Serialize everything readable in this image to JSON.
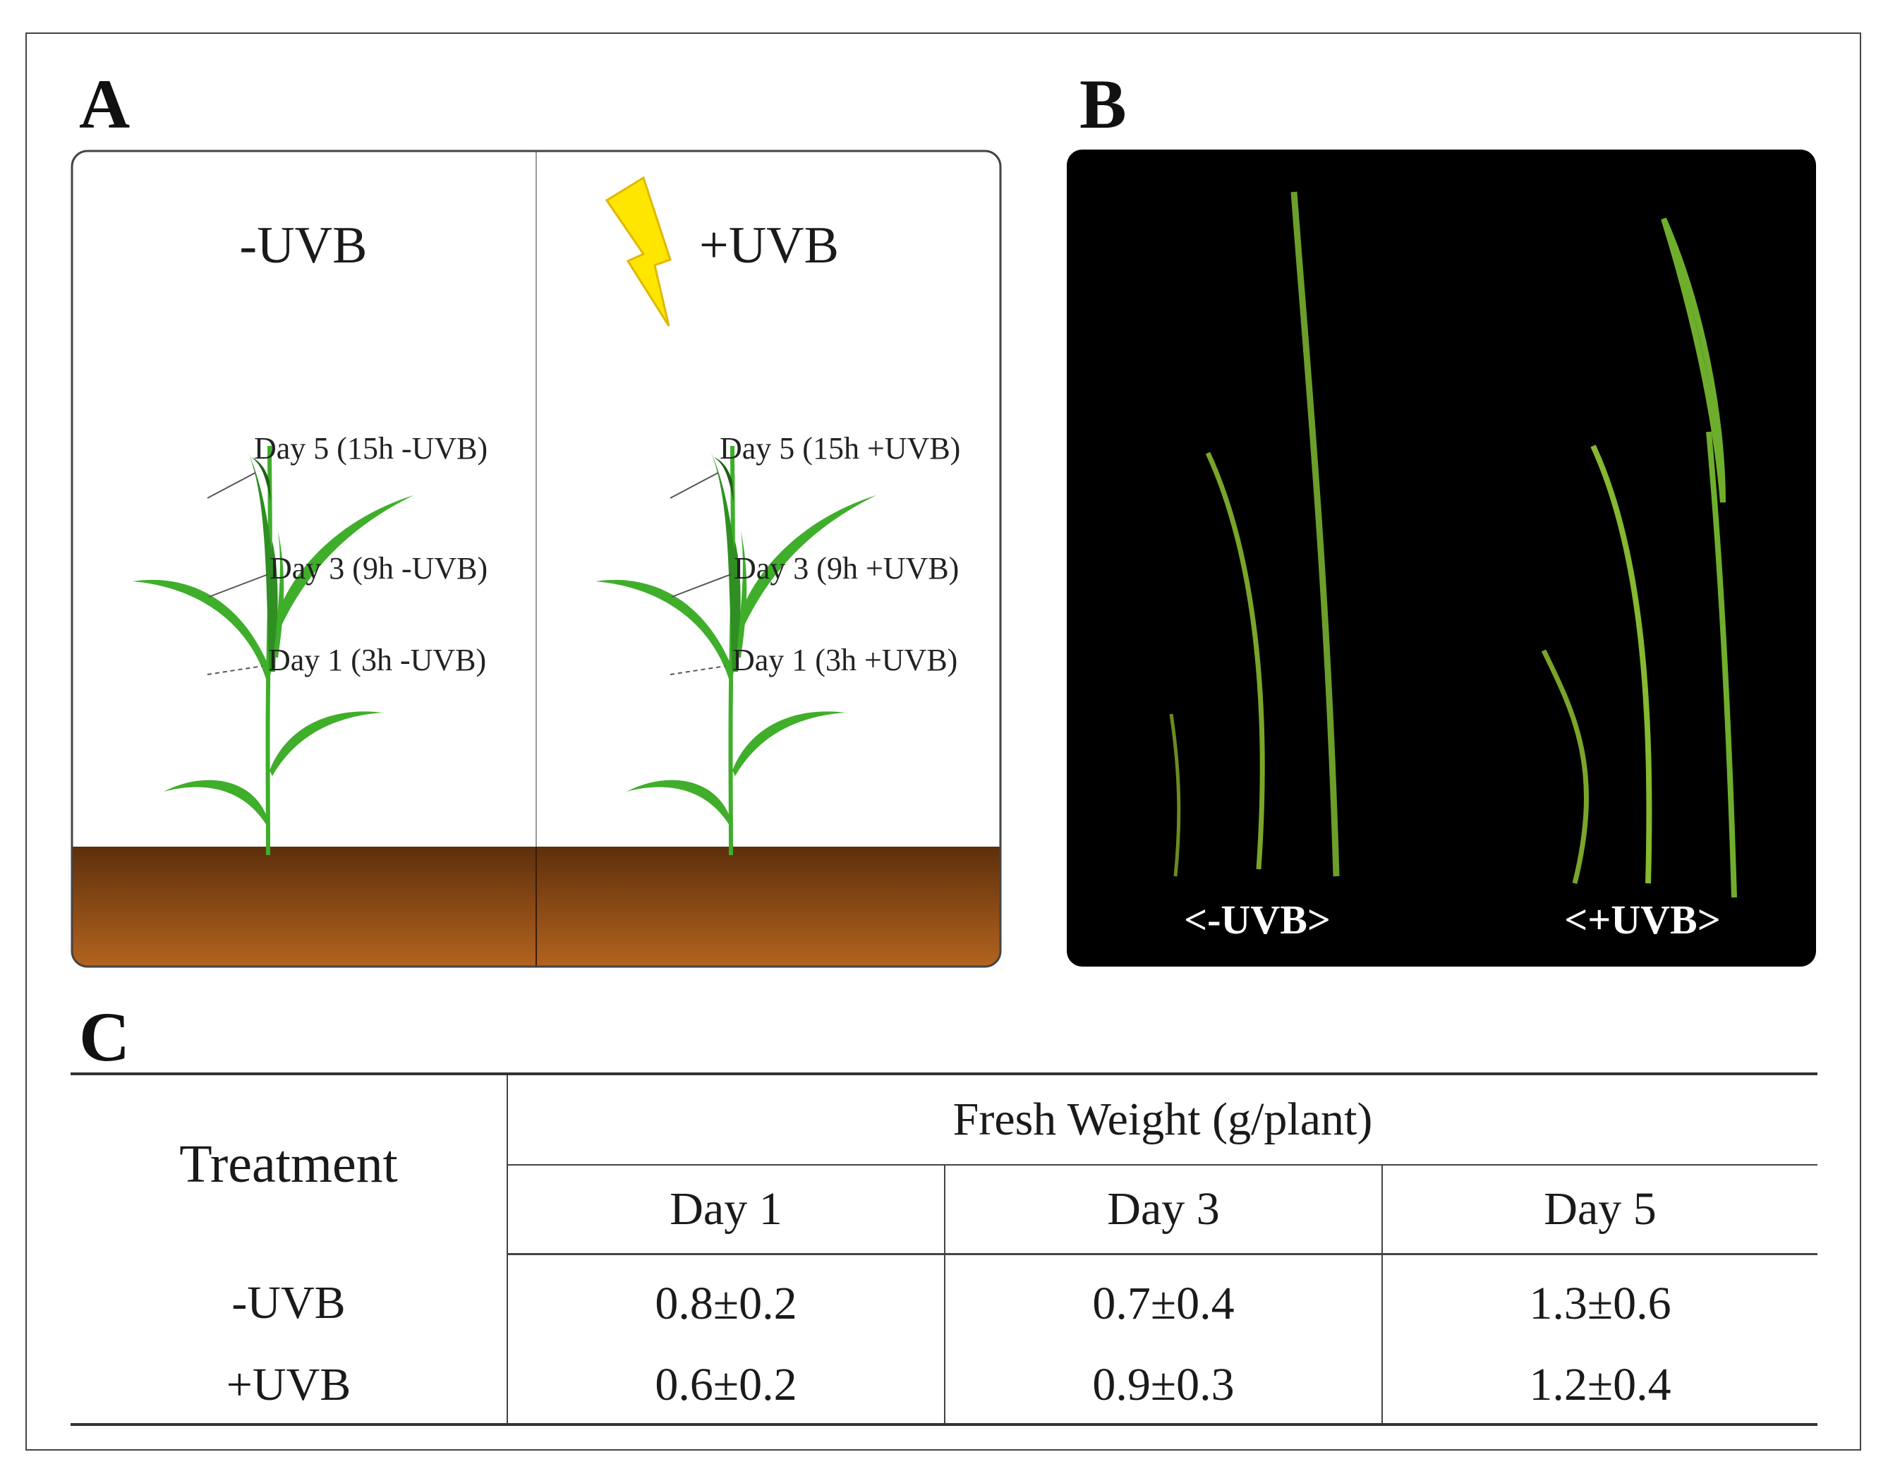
{
  "panel_a": {
    "letter": "A",
    "left": {
      "title": "-UVB",
      "annotations": [
        "Day 5 (15h -UVB)",
        "Day 3 (9h -UVB)",
        "Day 1 (3h -UVB)"
      ]
    },
    "right": {
      "title": "+UVB",
      "annotations": [
        "Day 5 (15h +UVB)",
        "Day 3 (9h +UVB)",
        "Day 1 (3h +UVB)"
      ]
    },
    "colors": {
      "plant": "#3fae2a",
      "soil_top": "#5e2f0c",
      "soil_bottom": "#b4641f",
      "bolt": "#ffe600"
    }
  },
  "panel_b": {
    "letter": "B",
    "labels": [
      "<-UVB>",
      "<+UVB>"
    ],
    "colors": {
      "background": "#000000",
      "leaf": "#6b9e2a"
    }
  },
  "panel_c": {
    "letter": "C",
    "header": {
      "treatment": "Treatment",
      "group": "Fresh Weight (g/plant)",
      "days": [
        "Day 1",
        "Day 3",
        "Day 5"
      ]
    },
    "rows": [
      {
        "treatment": "-UVB",
        "values": [
          "0.8±0.2",
          "0.7±0.4",
          "1.3±0.6"
        ]
      },
      {
        "treatment": "+UVB",
        "values": [
          "0.6±0.2",
          "0.9±0.3",
          "1.2±0.4"
        ]
      }
    ]
  }
}
